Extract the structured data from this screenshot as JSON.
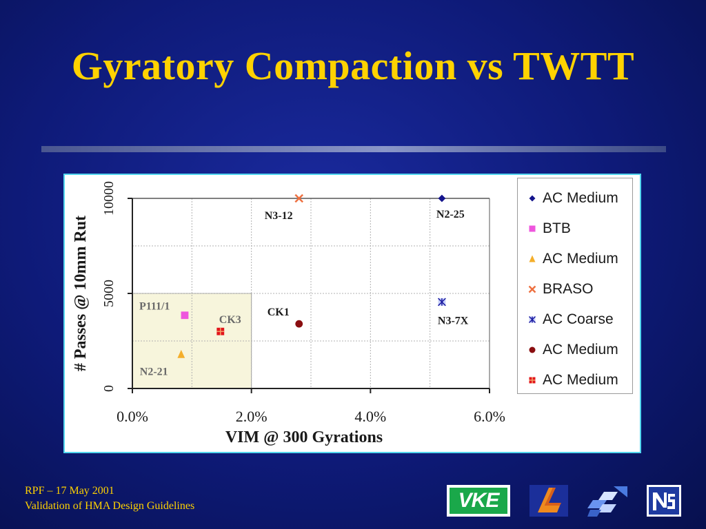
{
  "slide": {
    "title": "Gyratory Compaction vs TWTT",
    "footer_line1": "RPF – 17 May 2001",
    "footer_line2": "Validation of HMA Design Guidelines",
    "title_color": "#ffd200",
    "accent_border": "#52d6ee"
  },
  "logos": {
    "vke_text": "VKE"
  },
  "chart_data": {
    "type": "scatter",
    "xlabel": "VIM @ 300 Gyrations",
    "ylabel": "# Passes @ 10mm Rut",
    "xlim": [
      0.0,
      0.06
    ],
    "ylim": [
      0,
      10000
    ],
    "x_ticks": [
      "0.0%",
      "2.0%",
      "4.0%",
      "6.0%"
    ],
    "y_ticks": [
      "0",
      "5000",
      "10000"
    ],
    "grid": true,
    "legend_position": "right",
    "highlight_region": {
      "x": [
        0.0,
        0.02
      ],
      "y": [
        0,
        5000
      ],
      "color": "#f7f5dc"
    },
    "series": [
      {
        "name": "AC Medium",
        "marker": "diamond",
        "color": "#14148c",
        "points": [
          {
            "x": 0.052,
            "y": 10000,
            "label": "N2-25"
          }
        ]
      },
      {
        "name": "BTB",
        "marker": "square",
        "color": "#ee55dd",
        "points": [
          {
            "x": 0.0088,
            "y": 3850,
            "label": "P111/1"
          }
        ]
      },
      {
        "name": "AC Medium",
        "marker": "triangle",
        "color": "#f4ae2a",
        "points": [
          {
            "x": 0.0082,
            "y": 1800,
            "label": "N2-21"
          }
        ]
      },
      {
        "name": "BRASO",
        "marker": "x",
        "color": "#ee7040",
        "points": [
          {
            "x": 0.028,
            "y": 10000,
            "label": "N3-12"
          }
        ]
      },
      {
        "name": "AC Coarse",
        "marker": "star",
        "color": "#7a88ee",
        "points": [
          {
            "x": 0.052,
            "y": 4550,
            "label": "N3-7X"
          }
        ]
      },
      {
        "name": "AC Medium",
        "marker": "circle",
        "color": "#8a0e10",
        "points": [
          {
            "x": 0.028,
            "y": 3400,
            "label": "CK1"
          }
        ]
      },
      {
        "name": "AC Medium",
        "marker": "square-cross",
        "color": "#e2151c",
        "points": [
          {
            "x": 0.0148,
            "y": 3000,
            "label": "CK3"
          }
        ]
      }
    ]
  }
}
